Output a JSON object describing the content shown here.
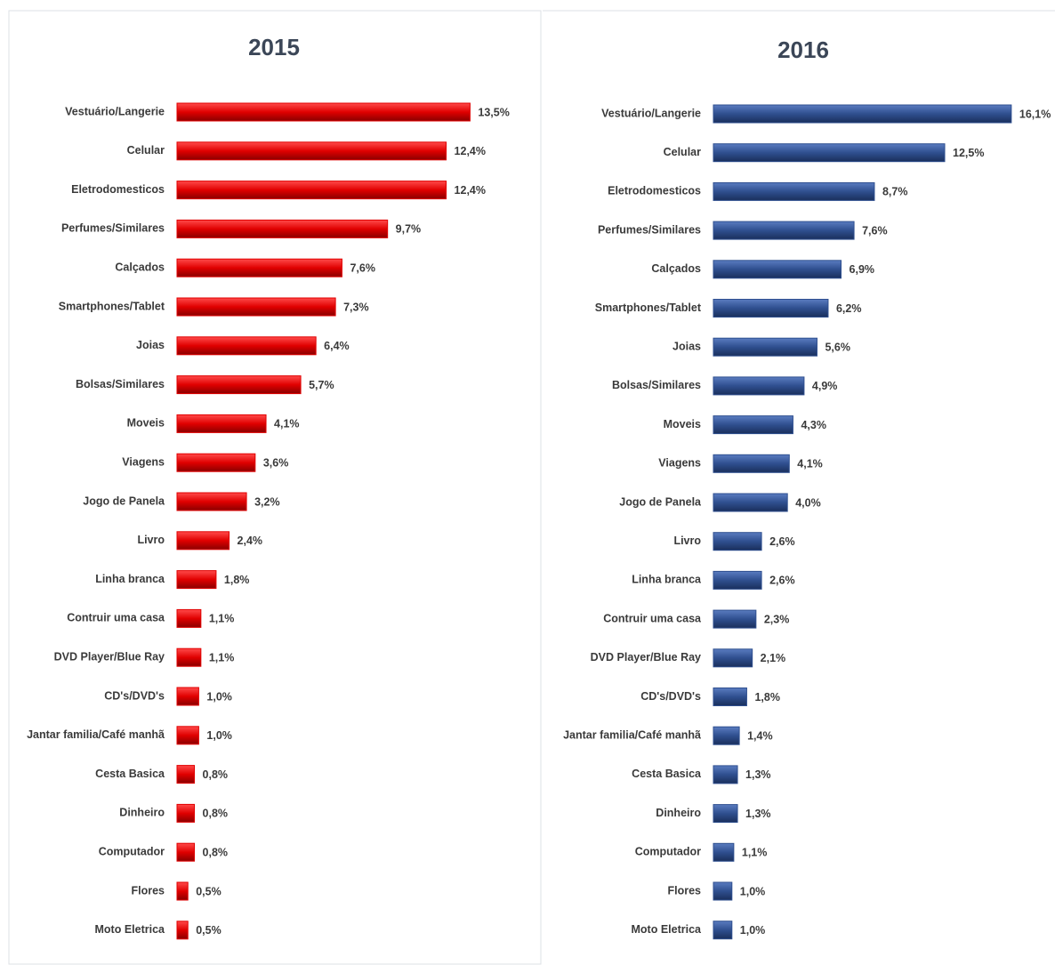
{
  "chart_data": [
    {
      "type": "bar",
      "title": "2015",
      "color": "#e00000",
      "categories": [
        "Vestuário/Langerie",
        "Celular",
        "Eletrodomesticos",
        "Perfumes/Similares",
        "Calçados",
        "Smartphones/Tablet",
        "Joias",
        "Bolsas/Similares",
        "Moveis",
        "Viagens",
        "Jogo de Panela",
        "Livro",
        "Linha branca",
        "Contruir uma casa",
        "DVD Player/Blue Ray",
        "CD's/DVD's",
        "Jantar familia/Café manhã",
        "Cesta Basica",
        "Dinheiro",
        "Computador",
        "Flores",
        "Moto Eletrica"
      ],
      "values": [
        13.5,
        12.4,
        12.4,
        9.7,
        7.6,
        7.3,
        6.4,
        5.7,
        4.1,
        3.6,
        3.2,
        2.4,
        1.8,
        1.1,
        1.1,
        1.0,
        1.0,
        0.8,
        0.8,
        0.8,
        0.5,
        0.5
      ],
      "value_labels": [
        "13,5%",
        "12,4%",
        "12,4%",
        "9,7%",
        "7,6%",
        "7,3%",
        "6,4%",
        "5,7%",
        "4,1%",
        "3,6%",
        "3,2%",
        "2,4%",
        "1,8%",
        "1,1%",
        "1,1%",
        "1,0%",
        "1,0%",
        "0,8%",
        "0,8%",
        "0,8%",
        "0,5%",
        "0,5%"
      ]
    },
    {
      "type": "bar",
      "title": "2016",
      "color": "#2f4f8f",
      "categories": [
        "Vestuário/Langerie",
        "Celular",
        "Eletrodomesticos",
        "Perfumes/Similares",
        "Calçados",
        "Smartphones/Tablet",
        "Joias",
        "Bolsas/Similares",
        "Moveis",
        "Viagens",
        "Jogo de Panela",
        "Livro",
        "Linha branca",
        "Contruir uma casa",
        "DVD Player/Blue Ray",
        "CD's/DVD's",
        "Jantar familia/Café manhã",
        "Cesta Basica",
        "Dinheiro",
        "Computador",
        "Flores",
        "Moto Eletrica"
      ],
      "values": [
        16.1,
        12.5,
        8.7,
        7.6,
        6.9,
        6.2,
        5.6,
        4.9,
        4.3,
        4.1,
        4.0,
        2.6,
        2.6,
        2.3,
        2.1,
        1.8,
        1.4,
        1.3,
        1.3,
        1.1,
        1.0,
        1.0
      ],
      "value_labels": [
        "16,1%",
        "12,5%",
        "8,7%",
        "7,6%",
        "6,9%",
        "6,2%",
        "5,6%",
        "4,9%",
        "4,3%",
        "4,1%",
        "4,0%",
        "2,6%",
        "2,6%",
        "2,3%",
        "2,1%",
        "1,8%",
        "1,4%",
        "1,3%",
        "1,3%",
        "1,1%",
        "1,0%",
        "1,0%"
      ]
    }
  ]
}
